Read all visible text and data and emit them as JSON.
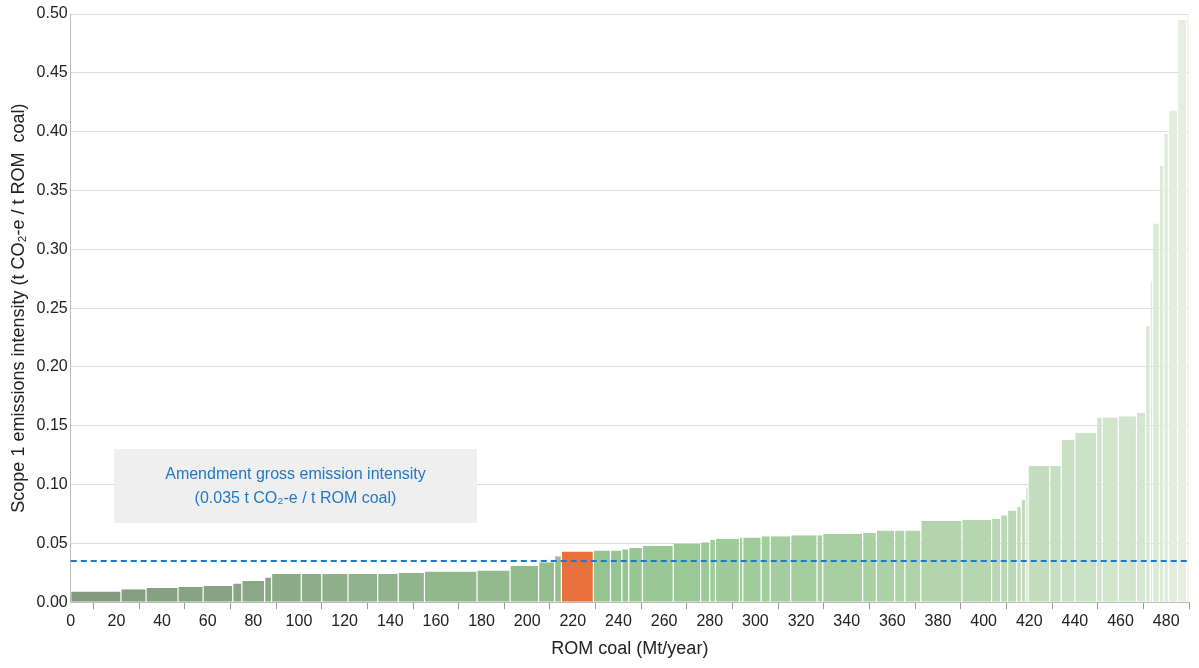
{
  "chart_data": {
    "type": "histogram",
    "xlabel": "ROM coal (Mt/year)",
    "ylabel": "Scope 1 emissions intensity (t CO₂-e / t ROM  coal)",
    "bins": [
      0,
      22,
      33,
      47,
      58,
      71,
      75,
      85,
      88,
      101,
      110,
      121.5,
      134.5,
      143.5,
      155,
      178,
      192.5,
      205,
      212,
      215,
      229,
      236.5,
      241.5,
      244.5,
      250.5,
      264,
      276,
      280,
      282.5,
      293,
      294.5,
      302.5,
      306.5,
      315.5,
      327,
      329.5,
      347,
      353,
      361,
      365.5,
      372.5,
      390.5,
      403.5,
      407.5,
      410.5,
      414.5,
      416.5,
      418.5,
      419.5,
      429,
      434,
      440,
      449.5,
      452,
      459,
      467,
      471,
      473,
      474,
      477,
      479,
      481,
      485,
      489,
      490
    ],
    "values": [
      0.009,
      0.011,
      0.012,
      0.013,
      0.014,
      0.016,
      0.018,
      0.021,
      0.024,
      0.024,
      0.024,
      0.024,
      0.024,
      0.025,
      0.026,
      0.027,
      0.031,
      0.034,
      0.039,
      0.043,
      0.044,
      0.044,
      0.045,
      0.046,
      0.048,
      0.05,
      0.051,
      0.053,
      0.054,
      0.055,
      0.055,
      0.056,
      0.056,
      0.057,
      0.057,
      0.058,
      0.059,
      0.061,
      0.061,
      0.061,
      0.069,
      0.07,
      0.071,
      0.074,
      0.078,
      0.081,
      0.087,
      0.097,
      0.116,
      0.116,
      0.138,
      0.144,
      0.157,
      0.157,
      0.158,
      0.161,
      0.235,
      0.273,
      0.322,
      0.371,
      0.398,
      0.418,
      0.495,
      0.5
    ],
    "colors": [
      "#849b80",
      "#859e81",
      "#86a082",
      "#87a283",
      "#88a384",
      "#89a585",
      "#8aa786",
      "#8ba987",
      "#8cab88",
      "#8dad89",
      "#8eaf8a",
      "#8fb18b",
      "#90b38c",
      "#91b58c",
      "#92b78d",
      "#93b98e",
      "#94bb8f",
      "#95bd90",
      "#96bf90",
      "#e8703a",
      "#96c491",
      "#97c592",
      "#98c693",
      "#99c794",
      "#9ac895",
      "#9bc996",
      "#9cca97",
      "#9dcb98",
      "#9ecb99",
      "#9fcc9a",
      "#a0cc9b",
      "#a2cd9d",
      "#a3cd9e",
      "#a5ce9f",
      "#a6cea1",
      "#a8cfa2",
      "#aad0a4",
      "#acd1a6",
      "#aed2a8",
      "#b0d3aa",
      "#b3d4ad",
      "#b6d6b0",
      "#b8d7b2",
      "#bad8b4",
      "#bcd9b6",
      "#bedab8",
      "#c0dbba",
      "#c2dcbc",
      "#c4ddbf",
      "#c6dec1",
      "#c9e0c4",
      "#cce2c7",
      "#cfe3ca",
      "#d1e4cc",
      "#d3e5ce",
      "#d5e6d0",
      "#d7e8d3",
      "#d9e9d5",
      "#dbead7",
      "#ddebd9",
      "#dfecdb",
      "#e1eddd",
      "#e4efe1",
      "#e7f1e4"
    ],
    "xlim": [
      0,
      490
    ],
    "xticks": [
      0,
      20,
      40,
      60,
      80,
      100,
      120,
      140,
      160,
      180,
      200,
      220,
      240,
      260,
      280,
      300,
      320,
      340,
      360,
      380,
      400,
      420,
      440,
      460,
      480
    ],
    "ylim": [
      0,
      0.5
    ],
    "yticks": [
      {
        "value": 0,
        "label": "0.00"
      },
      0.05,
      {
        "value": 0.1,
        "label": "0.10"
      },
      0.15,
      {
        "value": 0.2,
        "label": "0.20"
      },
      0.25,
      {
        "value": 0.3,
        "label": "0.30"
      },
      0.35,
      {
        "value": 0.4,
        "label": "0.40"
      },
      0.45,
      {
        "value": 0.5,
        "label": "0.50"
      }
    ],
    "grid": "y",
    "ref_lines": [
      {
        "axis": "y",
        "value": 0.035,
        "label": "Amendment gross emission intensity\n(0.035 t CO₂-e / t ROM coal)",
        "color": "#1f78c8",
        "line_style": "dashed"
      }
    ]
  }
}
